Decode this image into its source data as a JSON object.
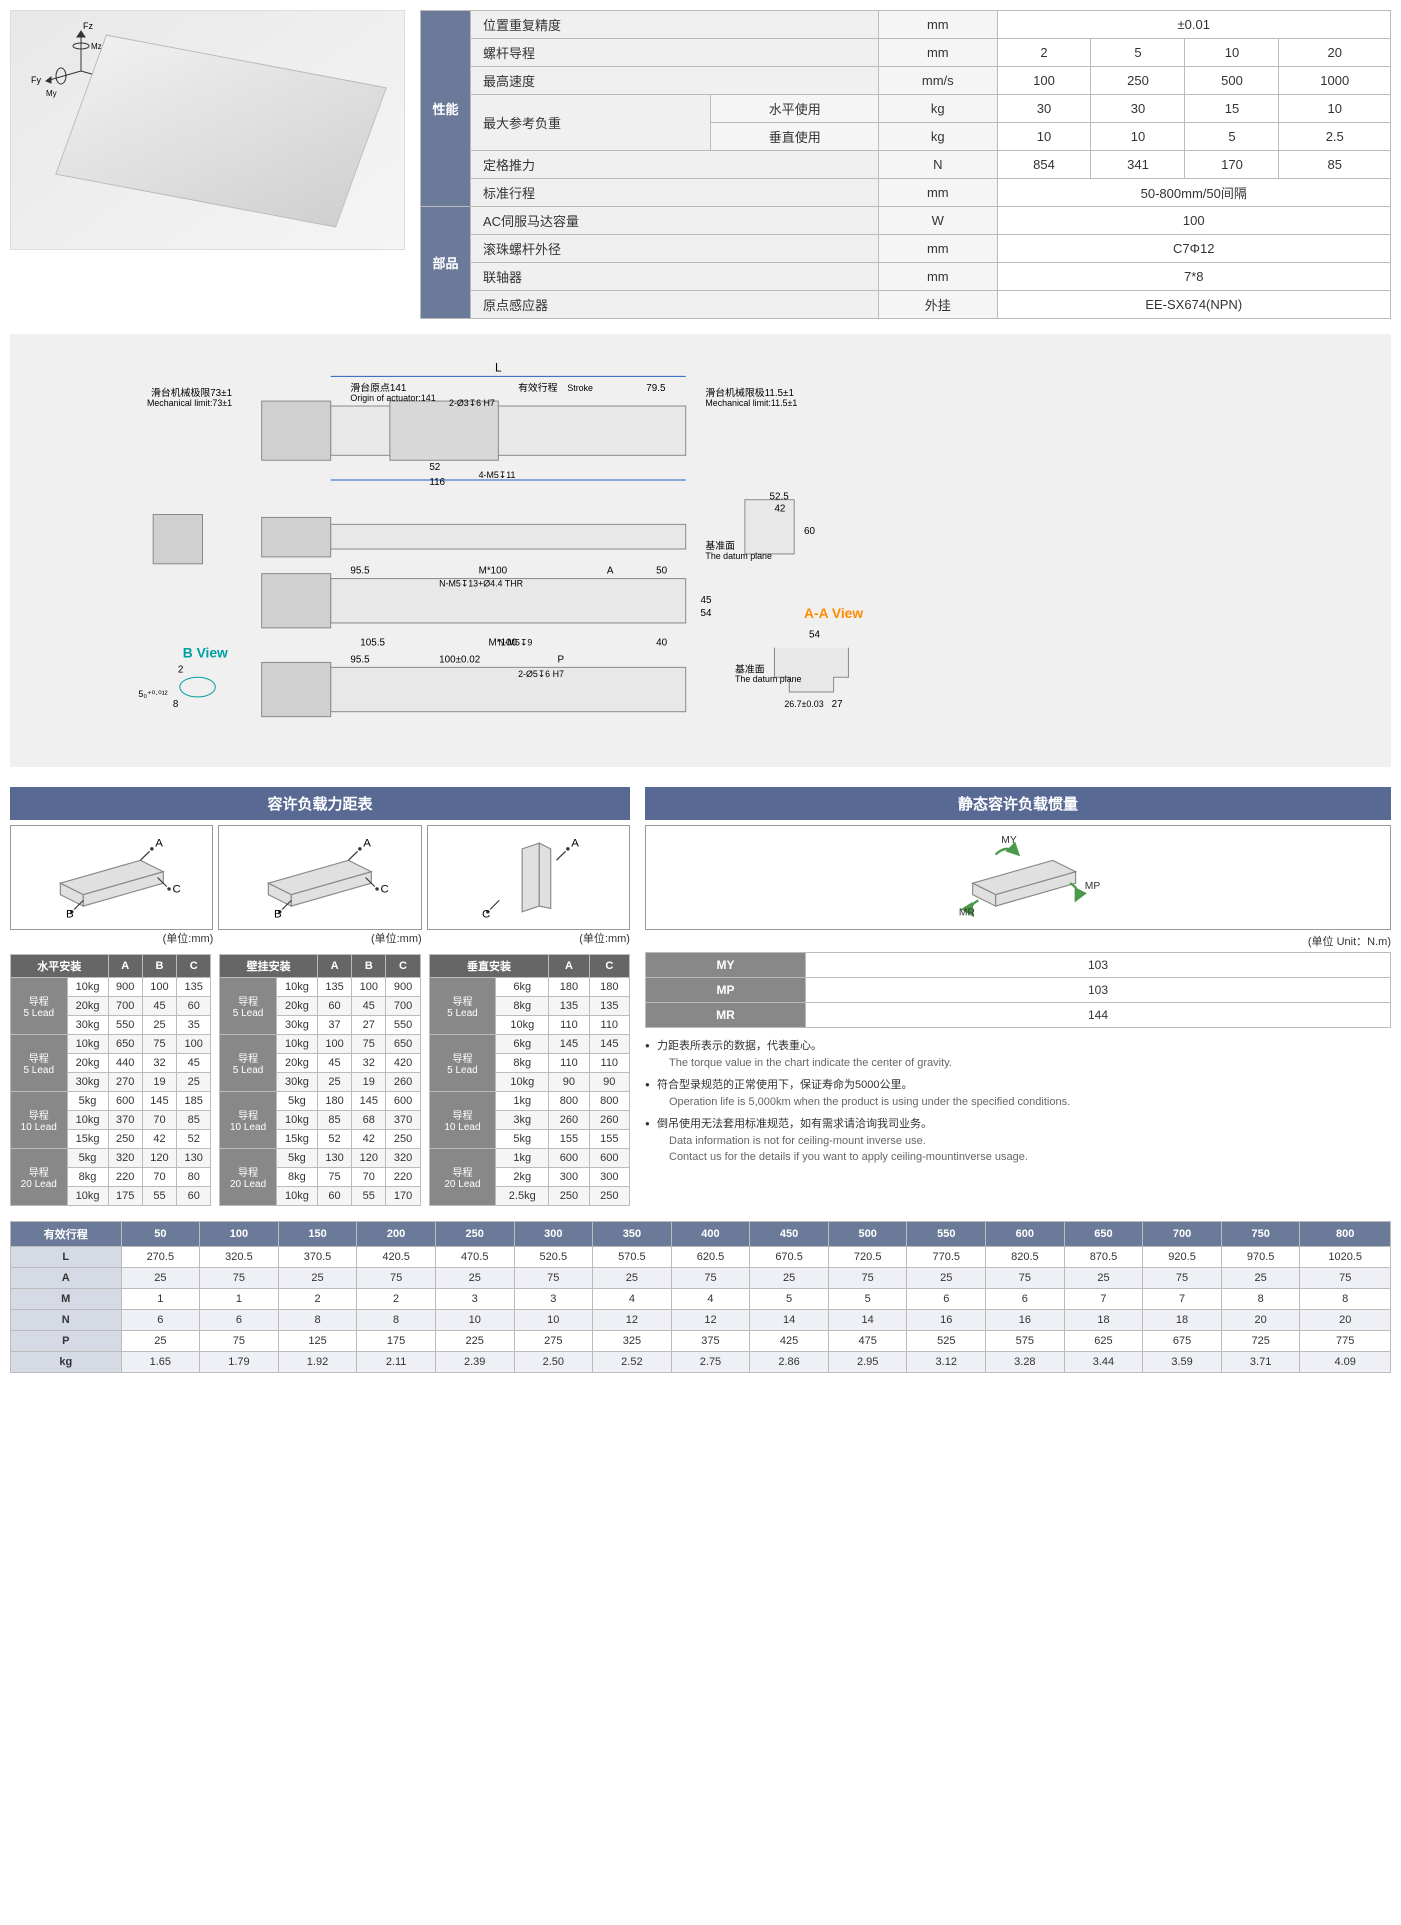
{
  "product_diagram": {
    "axes": [
      "Fx",
      "Fy",
      "Fz",
      "Mx",
      "My",
      "Mz"
    ],
    "axis_color": "#333333"
  },
  "spec_table": {
    "categories": [
      {
        "label": "性能",
        "rows": [
          {
            "label": "位置重复精度",
            "unit": "mm",
            "values": [
              "±0.01"
            ],
            "colspan": 4
          },
          {
            "label": "螺杆导程",
            "unit": "mm",
            "values": [
              "2",
              "5",
              "10",
              "20"
            ]
          },
          {
            "label": "最高速度",
            "unit": "mm/s",
            "values": [
              "100",
              "250",
              "500",
              "1000"
            ]
          },
          {
            "label": "最大参考负重",
            "sub": "水平使用",
            "unit": "kg",
            "values": [
              "30",
              "30",
              "15",
              "10"
            ],
            "rowspan": 2
          },
          {
            "label": "",
            "sub": "垂直使用",
            "unit": "kg",
            "values": [
              "10",
              "10",
              "5",
              "2.5"
            ]
          },
          {
            "label": "定格推力",
            "unit": "N",
            "values": [
              "854",
              "341",
              "170",
              "85"
            ]
          },
          {
            "label": "标准行程",
            "unit": "mm",
            "values": [
              "50-800mm/50间隔"
            ],
            "colspan": 4
          }
        ]
      },
      {
        "label": "部品",
        "rows": [
          {
            "label": "AC伺服马达容量",
            "unit": "W",
            "values": [
              "100"
            ],
            "colspan": 4
          },
          {
            "label": "滚珠螺杆外径",
            "unit": "mm",
            "values": [
              "C7Φ12"
            ],
            "colspan": 4
          },
          {
            "label": "联轴器",
            "unit": "mm",
            "values": [
              "7*8"
            ],
            "colspan": 4
          },
          {
            "label": "原点感应器",
            "unit": "外挂",
            "values": [
              "EE-SX674(NPN)"
            ],
            "colspan": 4
          }
        ]
      }
    ]
  },
  "drawing": {
    "labels": {
      "origin_cn": "滑台原点141",
      "origin_en": "Origin of actuator:141",
      "stroke_cn": "有效行程",
      "stroke_en": "Stroke",
      "mech_limit_left_cn": "滑台机械极限73±1",
      "mech_limit_left_en": "Mechanical limit:73±1",
      "mech_limit_right_cn": "滑台机械限极11.5±1",
      "mech_limit_right_en": "Mechanical limit:11.5±1",
      "datum_cn": "基准面",
      "datum_en": "The datum plane",
      "bview": "B View",
      "aaview": "A-A View",
      "hole1": "2-Ø3↧6 H7",
      "hole2": "4-M5↧11",
      "hole3": "N-M5↧13+Ø4.4 THR",
      "hole4": "N-M5↧9",
      "hole5": "2-Ø5↧6 H7",
      "dim_L": "L",
      "dim_79_5": "79.5",
      "dim_52": "52",
      "dim_116": "116",
      "dim_95_5": "95.5",
      "dim_M100": "M*100",
      "dim_A": "A",
      "dim_50": "50",
      "dim_105_5": "105.5",
      "dim_40": "40",
      "dim_100_02": "100±0.02",
      "dim_P": "P",
      "dim_45": "45",
      "dim_54": "54",
      "dim_52_5": "52.5",
      "dim_42": "42",
      "dim_60": "60",
      "dim_26_7": "26.7±0.03",
      "dim_27": "27",
      "dim_5tol": "5₀⁺⁰·⁰¹²",
      "dim_8": "8",
      "dim_2": "2"
    },
    "line_color": "#2060c0",
    "view_label_color": "#ff8c00",
    "bview_color": "#00a0a0"
  },
  "torque_section": {
    "title": "容许负载力距表",
    "unit": "(单位:mm)",
    "diagrams": [
      {
        "labels": [
          "A",
          "B",
          "C"
        ],
        "type": "horizontal"
      },
      {
        "labels": [
          "A",
          "B",
          "C"
        ],
        "type": "wall"
      },
      {
        "labels": [
          "A",
          "C"
        ],
        "type": "vertical"
      }
    ],
    "tables": [
      {
        "title": "水平安装",
        "cols": [
          "A",
          "B",
          "C"
        ],
        "groups": [
          {
            "lead": "导程\n5 Lead",
            "rows": [
              {
                "w": "10kg",
                "vals": [
                  "900",
                  "100",
                  "135"
                ]
              },
              {
                "w": "20kg",
                "vals": [
                  "700",
                  "45",
                  "60"
                ]
              },
              {
                "w": "30kg",
                "vals": [
                  "550",
                  "25",
                  "35"
                ]
              }
            ]
          },
          {
            "lead": "导程\n5 Lead",
            "rows": [
              {
                "w": "10kg",
                "vals": [
                  "650",
                  "75",
                  "100"
                ]
              },
              {
                "w": "20kg",
                "vals": [
                  "440",
                  "32",
                  "45"
                ]
              },
              {
                "w": "30kg",
                "vals": [
                  "270",
                  "19",
                  "25"
                ]
              }
            ]
          },
          {
            "lead": "导程\n10 Lead",
            "rows": [
              {
                "w": "5kg",
                "vals": [
                  "600",
                  "145",
                  "185"
                ]
              },
              {
                "w": "10kg",
                "vals": [
                  "370",
                  "70",
                  "85"
                ]
              },
              {
                "w": "15kg",
                "vals": [
                  "250",
                  "42",
                  "52"
                ]
              }
            ]
          },
          {
            "lead": "导程\n20 Lead",
            "rows": [
              {
                "w": "5kg",
                "vals": [
                  "320",
                  "120",
                  "130"
                ]
              },
              {
                "w": "8kg",
                "vals": [
                  "220",
                  "70",
                  "80"
                ]
              },
              {
                "w": "10kg",
                "vals": [
                  "175",
                  "55",
                  "60"
                ]
              }
            ]
          }
        ]
      },
      {
        "title": "壁挂安装",
        "cols": [
          "A",
          "B",
          "C"
        ],
        "groups": [
          {
            "lead": "导程\n5 Lead",
            "rows": [
              {
                "w": "10kg",
                "vals": [
                  "135",
                  "100",
                  "900"
                ]
              },
              {
                "w": "20kg",
                "vals": [
                  "60",
                  "45",
                  "700"
                ]
              },
              {
                "w": "30kg",
                "vals": [
                  "37",
                  "27",
                  "550"
                ]
              }
            ]
          },
          {
            "lead": "导程\n5 Lead",
            "rows": [
              {
                "w": "10kg",
                "vals": [
                  "100",
                  "75",
                  "650"
                ]
              },
              {
                "w": "20kg",
                "vals": [
                  "45",
                  "32",
                  "420"
                ]
              },
              {
                "w": "30kg",
                "vals": [
                  "25",
                  "19",
                  "260"
                ]
              }
            ]
          },
          {
            "lead": "导程\n10 Lead",
            "rows": [
              {
                "w": "5kg",
                "vals": [
                  "180",
                  "145",
                  "600"
                ]
              },
              {
                "w": "10kg",
                "vals": [
                  "85",
                  "68",
                  "370"
                ]
              },
              {
                "w": "15kg",
                "vals": [
                  "52",
                  "42",
                  "250"
                ]
              }
            ]
          },
          {
            "lead": "导程\n20 Lead",
            "rows": [
              {
                "w": "5kg",
                "vals": [
                  "130",
                  "120",
                  "320"
                ]
              },
              {
                "w": "8kg",
                "vals": [
                  "75",
                  "70",
                  "220"
                ]
              },
              {
                "w": "10kg",
                "vals": [
                  "60",
                  "55",
                  "170"
                ]
              }
            ]
          }
        ]
      },
      {
        "title": "垂直安装",
        "cols": [
          "A",
          "C"
        ],
        "groups": [
          {
            "lead": "导程\n5 Lead",
            "rows": [
              {
                "w": "6kg",
                "vals": [
                  "180",
                  "180"
                ]
              },
              {
                "w": "8kg",
                "vals": [
                  "135",
                  "135"
                ]
              },
              {
                "w": "10kg",
                "vals": [
                  "110",
                  "110"
                ]
              }
            ]
          },
          {
            "lead": "导程\n5 Lead",
            "rows": [
              {
                "w": "6kg",
                "vals": [
                  "145",
                  "145"
                ]
              },
              {
                "w": "8kg",
                "vals": [
                  "110",
                  "110"
                ]
              },
              {
                "w": "10kg",
                "vals": [
                  "90",
                  "90"
                ]
              }
            ]
          },
          {
            "lead": "导程\n10 Lead",
            "rows": [
              {
                "w": "1kg",
                "vals": [
                  "800",
                  "800"
                ]
              },
              {
                "w": "3kg",
                "vals": [
                  "260",
                  "260"
                ]
              },
              {
                "w": "5kg",
                "vals": [
                  "155",
                  "155"
                ]
              }
            ]
          },
          {
            "lead": "导程\n20 Lead",
            "rows": [
              {
                "w": "1kg",
                "vals": [
                  "600",
                  "600"
                ]
              },
              {
                "w": "2kg",
                "vals": [
                  "300",
                  "300"
                ]
              },
              {
                "w": "2.5kg",
                "vals": [
                  "250",
                  "250"
                ]
              }
            ]
          }
        ]
      }
    ]
  },
  "moment_section": {
    "title": "静态容许负载惯量",
    "unit": "(单位 Unit：N.m)",
    "diagram_labels": [
      "MY",
      "MP",
      "MR"
    ],
    "arrow_color": "#4a9a4a",
    "rows": [
      {
        "label": "MY",
        "val": "103"
      },
      {
        "label": "MP",
        "val": "103"
      },
      {
        "label": "MR",
        "val": "144"
      }
    ],
    "notes": [
      {
        "cn": "力距表所表示的数据，代表重心。",
        "en": "The torque value in the chart indicate the center of gravity."
      },
      {
        "cn": "符合型录规范的正常使用下，保证寿命为5000公里。",
        "en": "Operation life is 5,000km when the product is using under the specified conditions."
      },
      {
        "cn": "倒吊使用无法套用标准规范，如有需求请洽询我司业务。",
        "en": "Data information is not for ceiling-mount inverse use.\nContact us for the details if you want to apply ceiling-mountinverse usage."
      }
    ]
  },
  "stroke_table": {
    "header_label": "有效行程",
    "strokes": [
      "50",
      "100",
      "150",
      "200",
      "250",
      "300",
      "350",
      "400",
      "450",
      "500",
      "550",
      "600",
      "650",
      "700",
      "750",
      "800"
    ],
    "rows": [
      {
        "label": "L",
        "vals": [
          "270.5",
          "320.5",
          "370.5",
          "420.5",
          "470.5",
          "520.5",
          "570.5",
          "620.5",
          "670.5",
          "720.5",
          "770.5",
          "820.5",
          "870.5",
          "920.5",
          "970.5",
          "1020.5"
        ]
      },
      {
        "label": "A",
        "vals": [
          "25",
          "75",
          "25",
          "75",
          "25",
          "75",
          "25",
          "75",
          "25",
          "75",
          "25",
          "75",
          "25",
          "75",
          "25",
          "75"
        ]
      },
      {
        "label": "M",
        "vals": [
          "1",
          "1",
          "2",
          "2",
          "3",
          "3",
          "4",
          "4",
          "5",
          "5",
          "6",
          "6",
          "7",
          "7",
          "8",
          "8"
        ]
      },
      {
        "label": "N",
        "vals": [
          "6",
          "6",
          "8",
          "8",
          "10",
          "10",
          "12",
          "12",
          "14",
          "14",
          "16",
          "16",
          "18",
          "18",
          "20",
          "20"
        ]
      },
      {
        "label": "P",
        "vals": [
          "25",
          "75",
          "125",
          "175",
          "225",
          "275",
          "325",
          "375",
          "425",
          "475",
          "525",
          "575",
          "625",
          "675",
          "725",
          "775"
        ]
      },
      {
        "label": "kg",
        "vals": [
          "1.65",
          "1.79",
          "1.92",
          "2.11",
          "2.39",
          "2.50",
          "2.52",
          "2.75",
          "2.86",
          "2.95",
          "3.12",
          "3.28",
          "3.44",
          "3.59",
          "3.71",
          "4.09"
        ]
      }
    ]
  }
}
